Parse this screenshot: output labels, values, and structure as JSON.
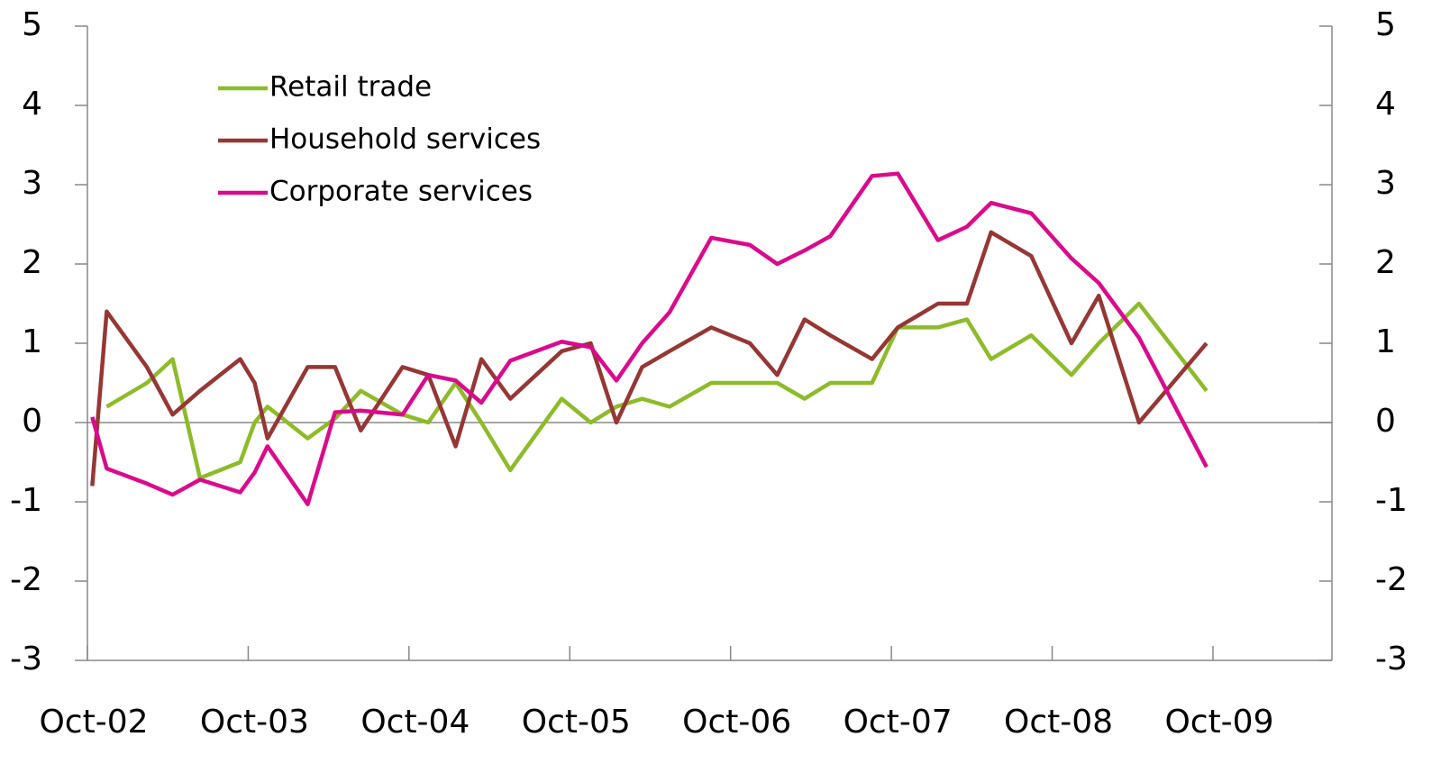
{
  "chart_data": {
    "type": "line",
    "x": [
      2002.78,
      2002.87,
      2003.12,
      2003.28,
      2003.45,
      2003.7,
      2003.79,
      2003.87,
      2004.12,
      2004.29,
      2004.45,
      2004.71,
      2004.87,
      2005.04,
      2005.2,
      2005.38,
      2005.7,
      2005.88,
      2006.04,
      2006.2,
      2006.37,
      2006.63,
      2006.87,
      2007.04,
      2007.21,
      2007.37,
      2007.63,
      2007.79,
      2008.04,
      2008.22,
      2008.37,
      2008.62,
      2008.87,
      2009.04,
      2009.29,
      2009.71
    ],
    "series": [
      {
        "name": "Retail trade",
        "color": "#8dbb2a",
        "values": [
          null,
          0.2,
          0.5,
          0.8,
          -0.7,
          -0.5,
          0.0,
          0.2,
          -0.2,
          0.05,
          0.4,
          0.1,
          0.0,
          0.5,
          0.0,
          -0.6,
          0.3,
          0.0,
          0.2,
          0.3,
          0.2,
          0.5,
          0.5,
          0.5,
          0.3,
          0.5,
          0.5,
          1.2,
          1.2,
          1.3,
          0.8,
          1.1,
          0.6,
          1.0,
          1.5,
          0.4
        ]
      },
      {
        "name": "Household services",
        "color": "#953735",
        "values": [
          -0.8,
          1.4,
          0.7,
          0.1,
          0.4,
          0.8,
          0.5,
          -0.2,
          0.7,
          0.7,
          -0.1,
          0.7,
          0.6,
          -0.3,
          0.8,
          0.3,
          0.9,
          1.0,
          0.0,
          0.7,
          0.9,
          1.2,
          1.0,
          0.6,
          1.3,
          1.1,
          0.8,
          1.2,
          1.5,
          1.5,
          2.4,
          2.1,
          1.0,
          1.6,
          0.0,
          1.0
        ]
      },
      {
        "name": "Corporate services",
        "color": "#d90b8c",
        "values": [
          0.07,
          -0.58,
          -0.77,
          -0.91,
          -0.72,
          -0.88,
          -0.63,
          -0.3,
          -1.03,
          0.13,
          0.15,
          0.1,
          0.6,
          0.53,
          0.25,
          0.78,
          1.02,
          0.95,
          0.53,
          1.0,
          1.39,
          2.33,
          2.24,
          2.0,
          2.17,
          2.35,
          3.11,
          3.14,
          2.3,
          2.47,
          2.77,
          2.64,
          2.07,
          1.76,
          1.07,
          -0.56
        ]
      }
    ],
    "xlim": [
      2002.75,
      2010.49
    ],
    "xticks": [
      {
        "value": 2002.75,
        "label": "Oct-02"
      },
      {
        "value": 2003.75,
        "label": "Oct-03"
      },
      {
        "value": 2004.75,
        "label": "Oct-04"
      },
      {
        "value": 2005.75,
        "label": "Oct-05"
      },
      {
        "value": 2006.75,
        "label": "Oct-06"
      },
      {
        "value": 2007.75,
        "label": "Oct-07"
      },
      {
        "value": 2008.75,
        "label": "Oct-08"
      },
      {
        "value": 2009.75,
        "label": "Oct-09"
      }
    ],
    "ylim": [
      -3,
      5
    ],
    "yticks": [
      -3,
      -2,
      -1,
      0,
      1,
      2,
      3,
      4,
      5
    ],
    "y2lim": [
      -3,
      5
    ],
    "y2ticks": [
      -3,
      -2,
      -1,
      0,
      1,
      2,
      3,
      4,
      5
    ],
    "legend": "upper left"
  }
}
